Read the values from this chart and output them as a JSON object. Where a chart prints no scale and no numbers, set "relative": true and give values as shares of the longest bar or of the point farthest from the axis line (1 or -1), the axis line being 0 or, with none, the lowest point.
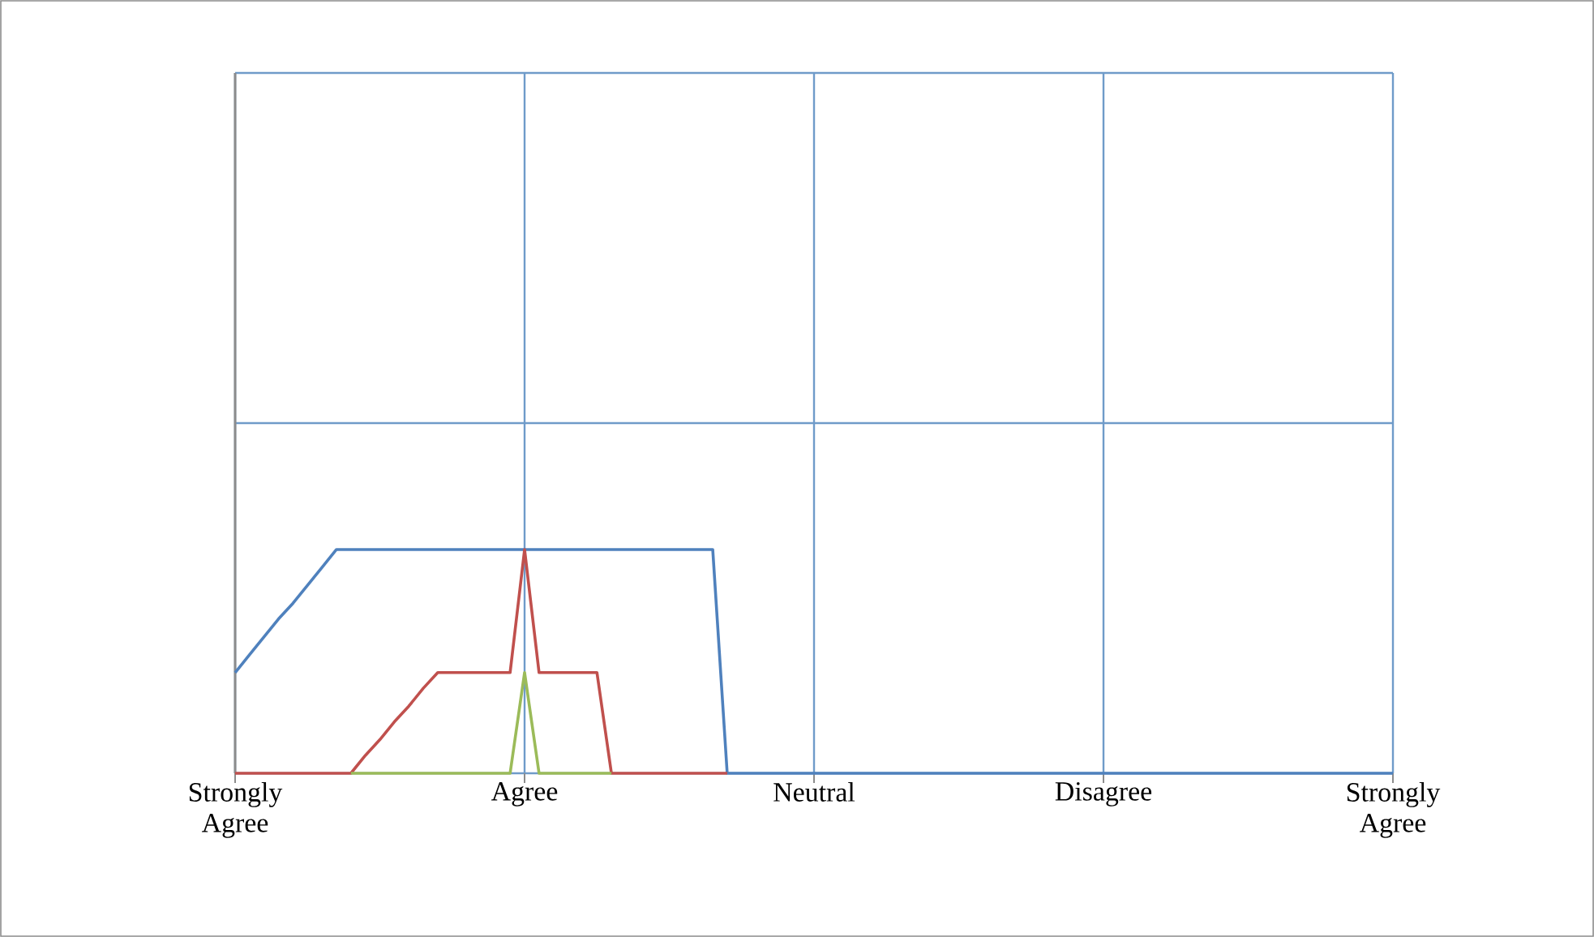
{
  "chart_data": {
    "type": "line",
    "relative": true,
    "grid": true,
    "categories": [
      "Strongly Agree",
      null,
      null,
      null,
      null,
      null,
      null,
      null,
      null,
      null,
      null,
      null,
      null,
      null,
      null,
      null,
      null,
      null,
      null,
      null,
      "Agree",
      null,
      null,
      null,
      null,
      null,
      null,
      null,
      null,
      null,
      null,
      null,
      null,
      null,
      null,
      null,
      null,
      null,
      null,
      null,
      "Neutral",
      null,
      null,
      null,
      null,
      null,
      null,
      null,
      null,
      null,
      null,
      null,
      null,
      null,
      null,
      null,
      null,
      null,
      null,
      null,
      "Disagree",
      null,
      null,
      null,
      null,
      null,
      null,
      null,
      null,
      null,
      null,
      null,
      null,
      null,
      null,
      null,
      null,
      null,
      null,
      null,
      "Strongly Agree"
    ],
    "series": [
      {
        "color": "#4f81bd",
        "values": [
          0.45,
          0.53,
          0.61,
          0.69,
          0.76,
          0.84,
          0.92,
          1,
          1,
          1,
          1,
          1,
          1,
          1,
          1,
          1,
          1,
          1,
          1,
          1,
          1,
          1,
          1,
          1,
          1,
          1,
          1,
          1,
          1,
          1,
          1,
          1,
          1,
          1,
          0,
          0,
          0,
          0,
          0,
          0,
          0,
          0,
          0,
          0,
          0,
          0,
          0,
          0,
          0,
          0,
          0,
          0,
          0,
          0,
          0,
          0,
          0,
          0,
          0,
          0,
          0,
          0,
          0,
          0,
          0,
          0,
          0,
          0,
          0,
          0,
          0,
          0,
          0,
          0,
          0,
          0,
          0,
          0,
          0,
          0,
          0
        ]
      },
      {
        "color": "#c0504d",
        "values": [
          0,
          0,
          0,
          0,
          0,
          0,
          0,
          0,
          0,
          0.08,
          0.15,
          0.23,
          0.3,
          0.38,
          0.45,
          0.45,
          0.45,
          0.45,
          0.45,
          0.45,
          1,
          0.45,
          0.45,
          0.45,
          0.45,
          0.45,
          0,
          0,
          0,
          0,
          0,
          0,
          0,
          0,
          0,
          null,
          null,
          null,
          null,
          null,
          null,
          null,
          null,
          null,
          null,
          null,
          null,
          null,
          null,
          null,
          null,
          null,
          null,
          null,
          null,
          null,
          null,
          null,
          null,
          null,
          null,
          null,
          null,
          null,
          null,
          null,
          null,
          null,
          null,
          null,
          null,
          null,
          null,
          null,
          null,
          null,
          null,
          null,
          null,
          null,
          null
        ]
      },
      {
        "color": "#9bbb59",
        "values": [
          null,
          null,
          null,
          null,
          null,
          null,
          null,
          null,
          0,
          0,
          0,
          0,
          0,
          0,
          0,
          0,
          0,
          0,
          0,
          0,
          0.45,
          0,
          0,
          0,
          0,
          0,
          0,
          null,
          null,
          null,
          null,
          null,
          null,
          null,
          null,
          null,
          null,
          null,
          null,
          null,
          null,
          null,
          null,
          null,
          null,
          null,
          null,
          null,
          null,
          null,
          null,
          null,
          null,
          null,
          null,
          null,
          null,
          null,
          null,
          null,
          null,
          null,
          null,
          null,
          null,
          null,
          null,
          null,
          null,
          null,
          null,
          null,
          null,
          null,
          null,
          null,
          null,
          null,
          null,
          null,
          null
        ]
      }
    ]
  }
}
